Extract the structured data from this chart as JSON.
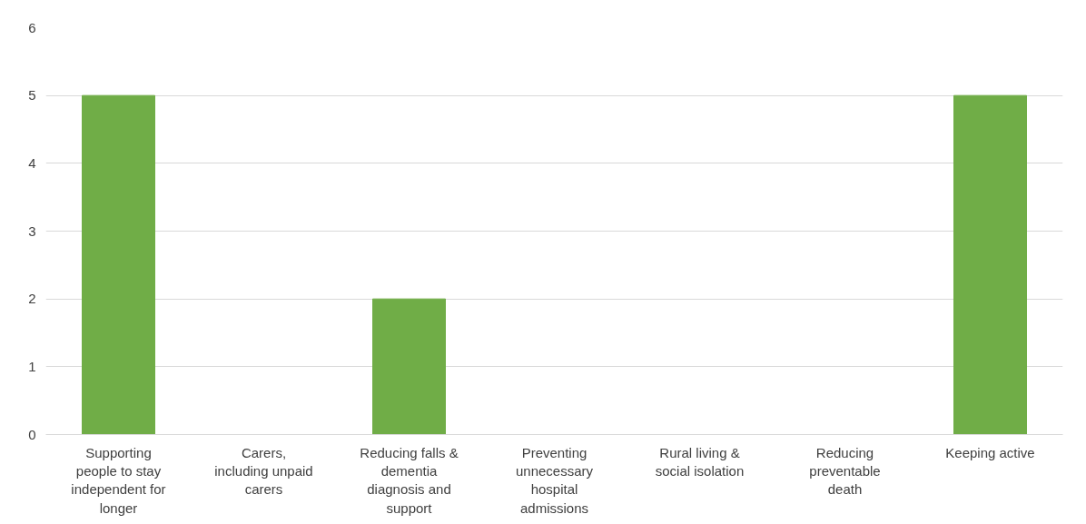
{
  "chart_data": {
    "type": "bar",
    "categories": [
      "Supporting people to stay independent for longer",
      "Carers, including unpaid carers",
      "Reducing falls & dementia diagnosis and support",
      "Preventing unnecessary hospital admissions",
      "Rural living & social isolation",
      "Reducing preventable death",
      "Keeping active"
    ],
    "values": [
      5,
      0,
      2,
      0,
      0,
      0,
      5
    ],
    "color": "#70ad47",
    "ylim": [
      0,
      6
    ],
    "yticks": [
      0,
      1,
      2,
      3,
      4,
      5,
      6
    ],
    "grid": "y"
  }
}
